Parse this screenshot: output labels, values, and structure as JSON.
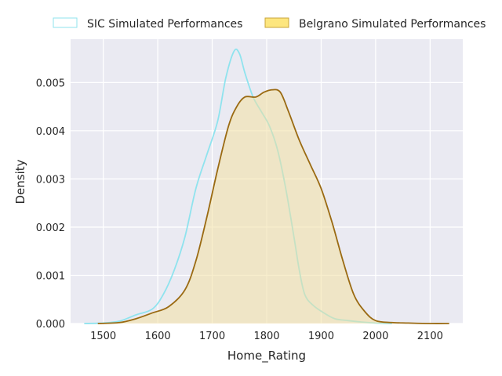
{
  "chart_data": {
    "type": "area",
    "title": "",
    "xlabel": "Home_Rating",
    "ylabel": "Density",
    "xlim": [
      1440,
      2160
    ],
    "ylim": [
      0,
      0.0059
    ],
    "x_ticks": [
      1500,
      1600,
      1700,
      1800,
      1900,
      2000,
      2100
    ],
    "y_ticks": [
      0.0,
      0.001,
      0.002,
      0.003,
      0.004,
      0.005
    ],
    "y_tick_labels": [
      "0.000",
      "0.001",
      "0.002",
      "0.003",
      "0.004",
      "0.005"
    ],
    "grid": true,
    "legend": "top",
    "series": [
      {
        "name": "SIC Simulated Performances",
        "line_color": "#8fe3ee",
        "fill_color": "#ffffff",
        "fill_opacity": 0.0,
        "points": [
          [
            1465,
            0.0
          ],
          [
            1500,
            1e-05
          ],
          [
            1530,
            5e-05
          ],
          [
            1560,
            0.00018
          ],
          [
            1590,
            0.0003
          ],
          [
            1610,
            0.0006
          ],
          [
            1630,
            0.0011
          ],
          [
            1650,
            0.0018
          ],
          [
            1670,
            0.0028
          ],
          [
            1690,
            0.0035
          ],
          [
            1710,
            0.0042
          ],
          [
            1725,
            0.0051
          ],
          [
            1740,
            0.00565
          ],
          [
            1750,
            0.0056
          ],
          [
            1760,
            0.0052
          ],
          [
            1775,
            0.0047
          ],
          [
            1790,
            0.0044
          ],
          [
            1805,
            0.0041
          ],
          [
            1820,
            0.0036
          ],
          [
            1835,
            0.0028
          ],
          [
            1850,
            0.0018
          ],
          [
            1860,
            0.0011
          ],
          [
            1870,
            0.0006
          ],
          [
            1885,
            0.00038
          ],
          [
            1905,
            0.00022
          ],
          [
            1925,
            0.0001
          ],
          [
            1950,
            6e-05
          ],
          [
            1975,
            3e-05
          ],
          [
            2000,
            1e-05
          ],
          [
            2030,
            0.0
          ]
        ]
      },
      {
        "name": "Belgrano Simulated Performances",
        "line_color": "#9a6a12",
        "fill_color": "#f2e0a3",
        "fill_opacity": 0.55,
        "points": [
          [
            1490,
            0.0
          ],
          [
            1530,
            2e-05
          ],
          [
            1560,
            0.0001
          ],
          [
            1590,
            0.00022
          ],
          [
            1620,
            0.00035
          ],
          [
            1650,
            0.0007
          ],
          [
            1670,
            0.0013
          ],
          [
            1690,
            0.0022
          ],
          [
            1710,
            0.0032
          ],
          [
            1730,
            0.0041
          ],
          [
            1745,
            0.0045
          ],
          [
            1760,
            0.0047
          ],
          [
            1780,
            0.0047
          ],
          [
            1795,
            0.0048
          ],
          [
            1810,
            0.00485
          ],
          [
            1825,
            0.0048
          ],
          [
            1840,
            0.0044
          ],
          [
            1860,
            0.0038
          ],
          [
            1880,
            0.0033
          ],
          [
            1900,
            0.0028
          ],
          [
            1920,
            0.0021
          ],
          [
            1940,
            0.0013
          ],
          [
            1960,
            0.0006
          ],
          [
            1980,
            0.00025
          ],
          [
            2000,
            6e-05
          ],
          [
            2030,
            2e-05
          ],
          [
            2060,
            1e-05
          ],
          [
            2100,
            0.0
          ],
          [
            2135,
            0.0
          ]
        ]
      }
    ]
  }
}
